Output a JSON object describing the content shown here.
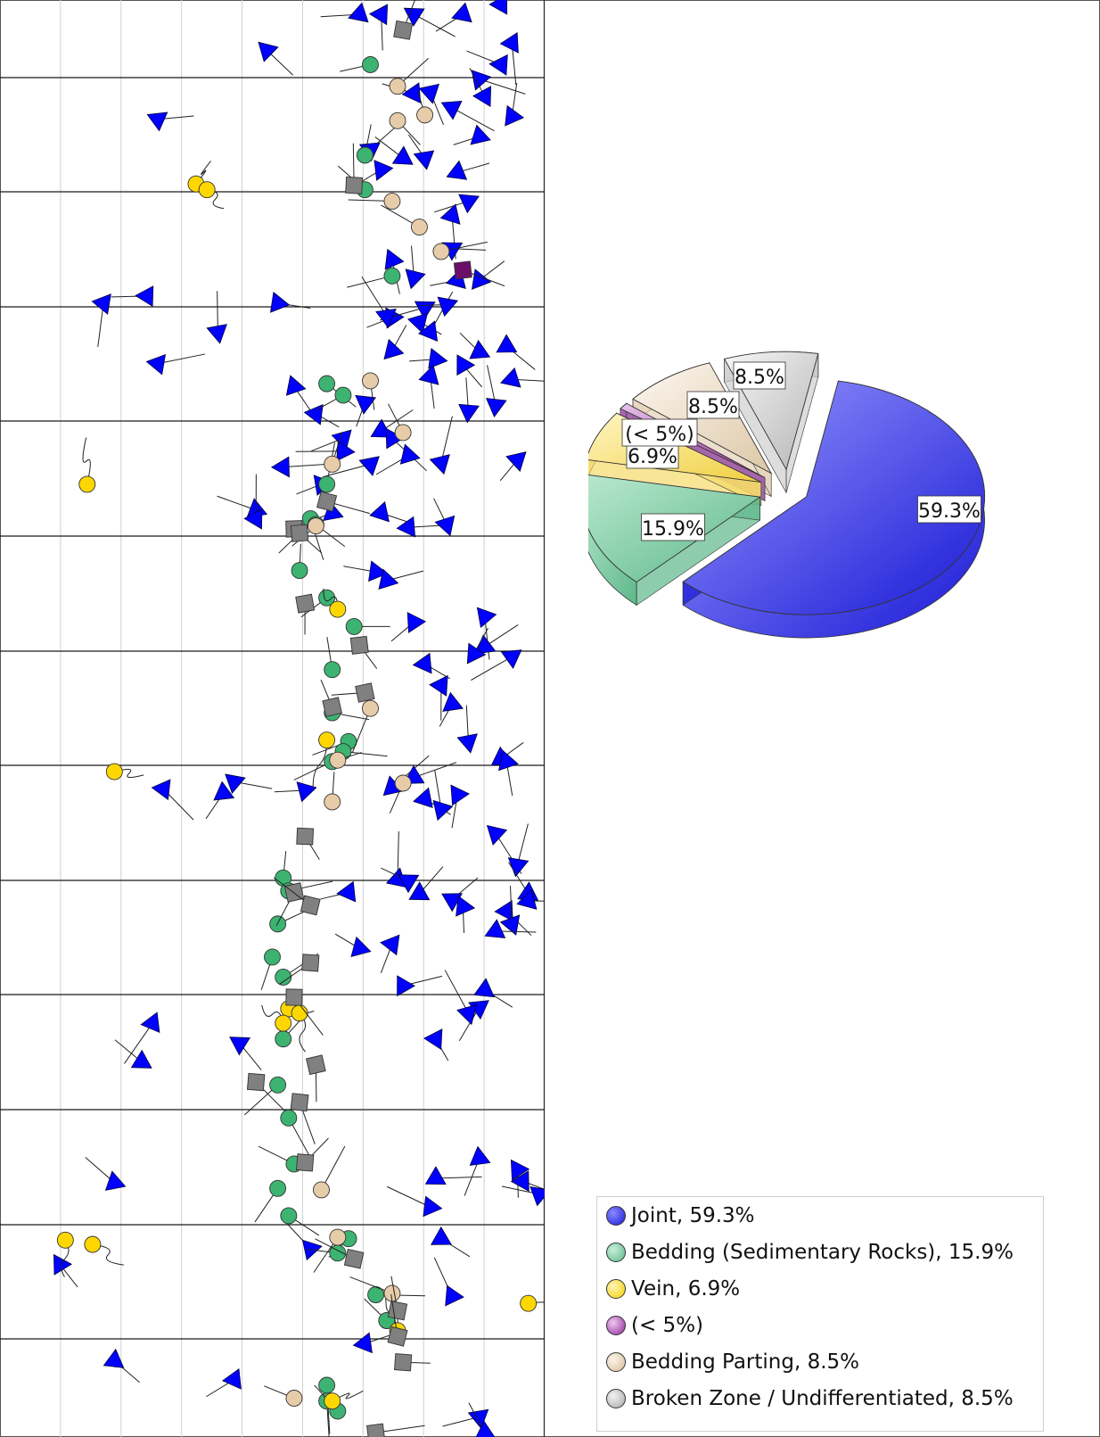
{
  "chart_data": [
    {
      "type": "tadpole",
      "grid": true,
      "series": [
        {
          "symbol": "triangle",
          "color": "#0000ff",
          "points": [
            [
              0.66,
              0.01
            ],
            [
              0.7,
              0.01
            ],
            [
              0.76,
              0.01
            ],
            [
              0.85,
              0.01
            ],
            [
              0.92,
              0.003
            ],
            [
              0.94,
              0.03
            ],
            [
              0.92,
              0.045
            ],
            [
              0.88,
              0.055
            ],
            [
              0.49,
              0.035
            ],
            [
              0.79,
              0.064
            ],
            [
              0.89,
              0.067
            ],
            [
              0.29,
              0.083
            ],
            [
              0.76,
              0.065
            ],
            [
              0.94,
              0.081
            ],
            [
              0.83,
              0.075
            ],
            [
              0.68,
              0.104
            ],
            [
              0.74,
              0.11
            ],
            [
              0.78,
              0.11
            ],
            [
              0.88,
              0.095
            ],
            [
              0.7,
              0.118
            ],
            [
              0.84,
              0.12
            ],
            [
              0.27,
              0.206
            ],
            [
              0.86,
              0.14
            ],
            [
              0.83,
              0.15
            ],
            [
              0.19,
              0.211
            ],
            [
              0.29,
              0.253
            ],
            [
              0.4,
              0.231
            ],
            [
              0.51,
              0.211
            ],
            [
              0.72,
              0.181
            ],
            [
              0.76,
              0.193
            ],
            [
              0.83,
              0.173
            ],
            [
              0.72,
              0.221
            ],
            [
              0.78,
              0.214
            ],
            [
              0.84,
              0.195
            ],
            [
              0.88,
              0.195
            ],
            [
              0.54,
              0.269
            ],
            [
              0.71,
              0.22
            ],
            [
              0.72,
              0.244
            ],
            [
              0.77,
              0.224
            ],
            [
              0.79,
              0.231
            ],
            [
              0.82,
              0.212
            ],
            [
              0.8,
              0.25
            ],
            [
              0.79,
              0.262
            ],
            [
              0.85,
              0.254
            ],
            [
              0.88,
              0.245
            ],
            [
              0.93,
              0.241
            ],
            [
              0.94,
              0.264
            ],
            [
              0.86,
              0.286
            ],
            [
              0.91,
              0.282
            ],
            [
              0.95,
              0.32
            ],
            [
              0.58,
              0.288
            ],
            [
              0.67,
              0.28
            ],
            [
              0.63,
              0.305
            ],
            [
              0.7,
              0.3
            ],
            [
              0.72,
              0.305
            ],
            [
              0.63,
              0.314
            ],
            [
              0.68,
              0.323
            ],
            [
              0.75,
              0.317
            ],
            [
              0.81,
              0.322
            ],
            [
              0.52,
              0.325
            ],
            [
              0.59,
              0.337
            ],
            [
              0.47,
              0.355
            ],
            [
              0.47,
              0.361
            ],
            [
              0.61,
              0.357
            ],
            [
              0.7,
              0.357
            ],
            [
              0.75,
              0.367
            ],
            [
              0.82,
              0.365
            ],
            [
              0.69,
              0.398
            ],
            [
              0.71,
              0.404
            ],
            [
              0.76,
              0.433
            ],
            [
              0.89,
              0.429
            ],
            [
              0.89,
              0.45
            ],
            [
              0.87,
              0.455
            ],
            [
              0.94,
              0.457
            ],
            [
              0.78,
              0.462
            ],
            [
              0.81,
              0.477
            ],
            [
              0.83,
              0.49
            ],
            [
              0.86,
              0.516
            ],
            [
              0.92,
              0.528
            ],
            [
              0.93,
              0.53
            ],
            [
              0.3,
              0.549
            ],
            [
              0.43,
              0.544
            ],
            [
              0.41,
              0.552
            ],
            [
              0.56,
              0.55
            ],
            [
              0.72,
              0.548
            ],
            [
              0.76,
              0.541
            ],
            [
              0.78,
              0.556
            ],
            [
              0.81,
              0.563
            ],
            [
              0.84,
              0.553
            ],
            [
              0.91,
              0.58
            ],
            [
              0.95,
              0.602
            ],
            [
              0.66,
              0.66
            ],
            [
              0.74,
              0.686
            ],
            [
              0.88,
              0.701
            ],
            [
              0.93,
              0.634
            ],
            [
              0.94,
              0.643
            ],
            [
              0.26,
              0.739
            ],
            [
              0.44,
              0.726
            ],
            [
              0.73,
              0.612
            ],
            [
              0.77,
              0.622
            ],
            [
              0.83,
              0.626
            ],
            [
              0.85,
              0.631
            ],
            [
              0.28,
              0.712
            ],
            [
              0.21,
              0.823
            ],
            [
              0.64,
              0.621
            ],
            [
              0.72,
              0.657
            ],
            [
              0.75,
              0.613
            ],
            [
              0.97,
              0.622
            ],
            [
              0.97,
              0.627
            ],
            [
              0.91,
              0.648
            ],
            [
              0.89,
              0.689
            ],
            [
              0.86,
              0.705
            ],
            [
              0.8,
              0.723
            ],
            [
              0.8,
              0.82
            ],
            [
              0.79,
              0.84
            ],
            [
              0.88,
              0.806
            ],
            [
              0.57,
              0.869
            ],
            [
              0.67,
              0.935
            ],
            [
              0.83,
              0.902
            ],
            [
              0.95,
              0.814
            ],
            [
              0.96,
              0.822
            ],
            [
              0.99,
              0.831
            ],
            [
              0.81,
              0.862
            ],
            [
              0.11,
              0.88
            ],
            [
              0.21,
              0.947
            ],
            [
              0.43,
              0.96
            ],
            [
              0.88,
              0.986
            ],
            [
              0.89,
              0.997
            ]
          ]
        },
        {
          "symbol": "circle",
          "color": "#3cb371",
          "points": [
            [
              0.68,
              0.045
            ],
            [
              0.67,
              0.108
            ],
            [
              0.67,
              0.132
            ],
            [
              0.72,
              0.192
            ],
            [
              0.6,
              0.267
            ],
            [
              0.63,
              0.275
            ],
            [
              0.6,
              0.337
            ],
            [
              0.57,
              0.361
            ],
            [
              0.58,
              0.365
            ],
            [
              0.55,
              0.397
            ],
            [
              0.6,
              0.416
            ],
            [
              0.65,
              0.436
            ],
            [
              0.61,
              0.466
            ],
            [
              0.61,
              0.496
            ],
            [
              0.64,
              0.516
            ],
            [
              0.63,
              0.523
            ],
            [
              0.61,
              0.53
            ],
            [
              0.52,
              0.611
            ],
            [
              0.53,
              0.62
            ],
            [
              0.51,
              0.643
            ],
            [
              0.5,
              0.666
            ],
            [
              0.52,
              0.68
            ],
            [
              0.52,
              0.723
            ],
            [
              0.51,
              0.755
            ],
            [
              0.53,
              0.778
            ],
            [
              0.54,
              0.81
            ],
            [
              0.51,
              0.827
            ],
            [
              0.53,
              0.846
            ],
            [
              0.64,
              0.862
            ],
            [
              0.62,
              0.872
            ],
            [
              0.69,
              0.901
            ],
            [
              0.71,
              0.919
            ],
            [
              0.6,
              0.964
            ],
            [
              0.6,
              0.975
            ],
            [
              0.62,
              0.982
            ]
          ]
        },
        {
          "symbol": "circle",
          "color": "#ffd700",
          "points": [
            [
              0.36,
              0.128
            ],
            [
              0.38,
              0.132
            ],
            [
              0.16,
              0.337
            ],
            [
              0.62,
              0.424
            ],
            [
              0.21,
              0.537
            ],
            [
              0.6,
              0.515
            ],
            [
              0.53,
              0.702
            ],
            [
              0.55,
              0.705
            ],
            [
              0.52,
              0.712
            ],
            [
              0.12,
              0.863
            ],
            [
              0.17,
              0.866
            ],
            [
              0.97,
              0.907
            ],
            [
              0.73,
              0.926
            ],
            [
              0.61,
              0.975
            ]
          ]
        },
        {
          "symbol": "circle",
          "color": "#e6cca8",
          "points": [
            [
              0.73,
              0.06
            ],
            [
              0.78,
              0.08
            ],
            [
              0.73,
              0.084
            ],
            [
              0.72,
              0.14
            ],
            [
              0.77,
              0.158
            ],
            [
              0.81,
              0.175
            ],
            [
              0.68,
              0.265
            ],
            [
              0.74,
              0.301
            ],
            [
              0.61,
              0.323
            ],
            [
              0.58,
              0.366
            ],
            [
              0.68,
              0.493
            ],
            [
              0.62,
              0.529
            ],
            [
              0.74,
              0.545
            ],
            [
              0.59,
              0.828
            ],
            [
              0.61,
              0.558
            ],
            [
              0.62,
              0.861
            ],
            [
              0.72,
              0.9
            ],
            [
              0.54,
              0.973
            ]
          ]
        },
        {
          "symbol": "square",
          "color": "#808080",
          "points": [
            [
              0.74,
              0.021
            ],
            [
              0.65,
              0.129
            ],
            [
              0.6,
              0.349
            ],
            [
              0.54,
              0.368
            ],
            [
              0.55,
              0.371
            ],
            [
              0.56,
              0.42
            ],
            [
              0.66,
              0.449
            ],
            [
              0.67,
              0.482
            ],
            [
              0.61,
              0.492
            ],
            [
              0.56,
              0.582
            ],
            [
              0.54,
              0.621
            ],
            [
              0.57,
              0.63
            ],
            [
              0.57,
              0.67
            ],
            [
              0.54,
              0.694
            ],
            [
              0.58,
              0.741
            ],
            [
              0.47,
              0.753
            ],
            [
              0.55,
              0.767
            ],
            [
              0.56,
              0.809
            ],
            [
              0.65,
              0.876
            ],
            [
              0.73,
              0.912
            ],
            [
              0.73,
              0.93
            ],
            [
              0.74,
              0.948
            ],
            [
              0.69,
              0.997
            ]
          ]
        },
        {
          "symbol": "square",
          "color": "#6b0f6b",
          "points": [
            [
              0.85,
              0.188
            ]
          ]
        }
      ]
    },
    {
      "type": "pie",
      "labels": [
        "Joint",
        "Bedding (Sedimentary Rocks)",
        "Vein",
        "(< 5%)",
        "Bedding Parting",
        "Broken Zone / Undifferentiated"
      ],
      "values": [
        59.3,
        15.9,
        6.9,
        0.9,
        8.5,
        8.5
      ],
      "data_labels": [
        "59.3%",
        "15.9%",
        "6.9%",
        "(< 5%)",
        "8.5%",
        "8.5%"
      ],
      "colors": [
        "#1a1ad6",
        "#5db88a",
        "#f5da6a",
        "#a05aa6",
        "#e4d2b8",
        "#cfcfcf"
      ],
      "exploded": true,
      "legend_position": "bottom-right",
      "legend_entries": [
        "Joint, 59.3%",
        "Bedding (Sedimentary Rocks), 15.9%",
        "Vein, 6.9%",
        "(< 5%)",
        "Bedding Parting, 8.5%",
        "Broken Zone / Undifferentiated, 8.5%"
      ]
    }
  ]
}
